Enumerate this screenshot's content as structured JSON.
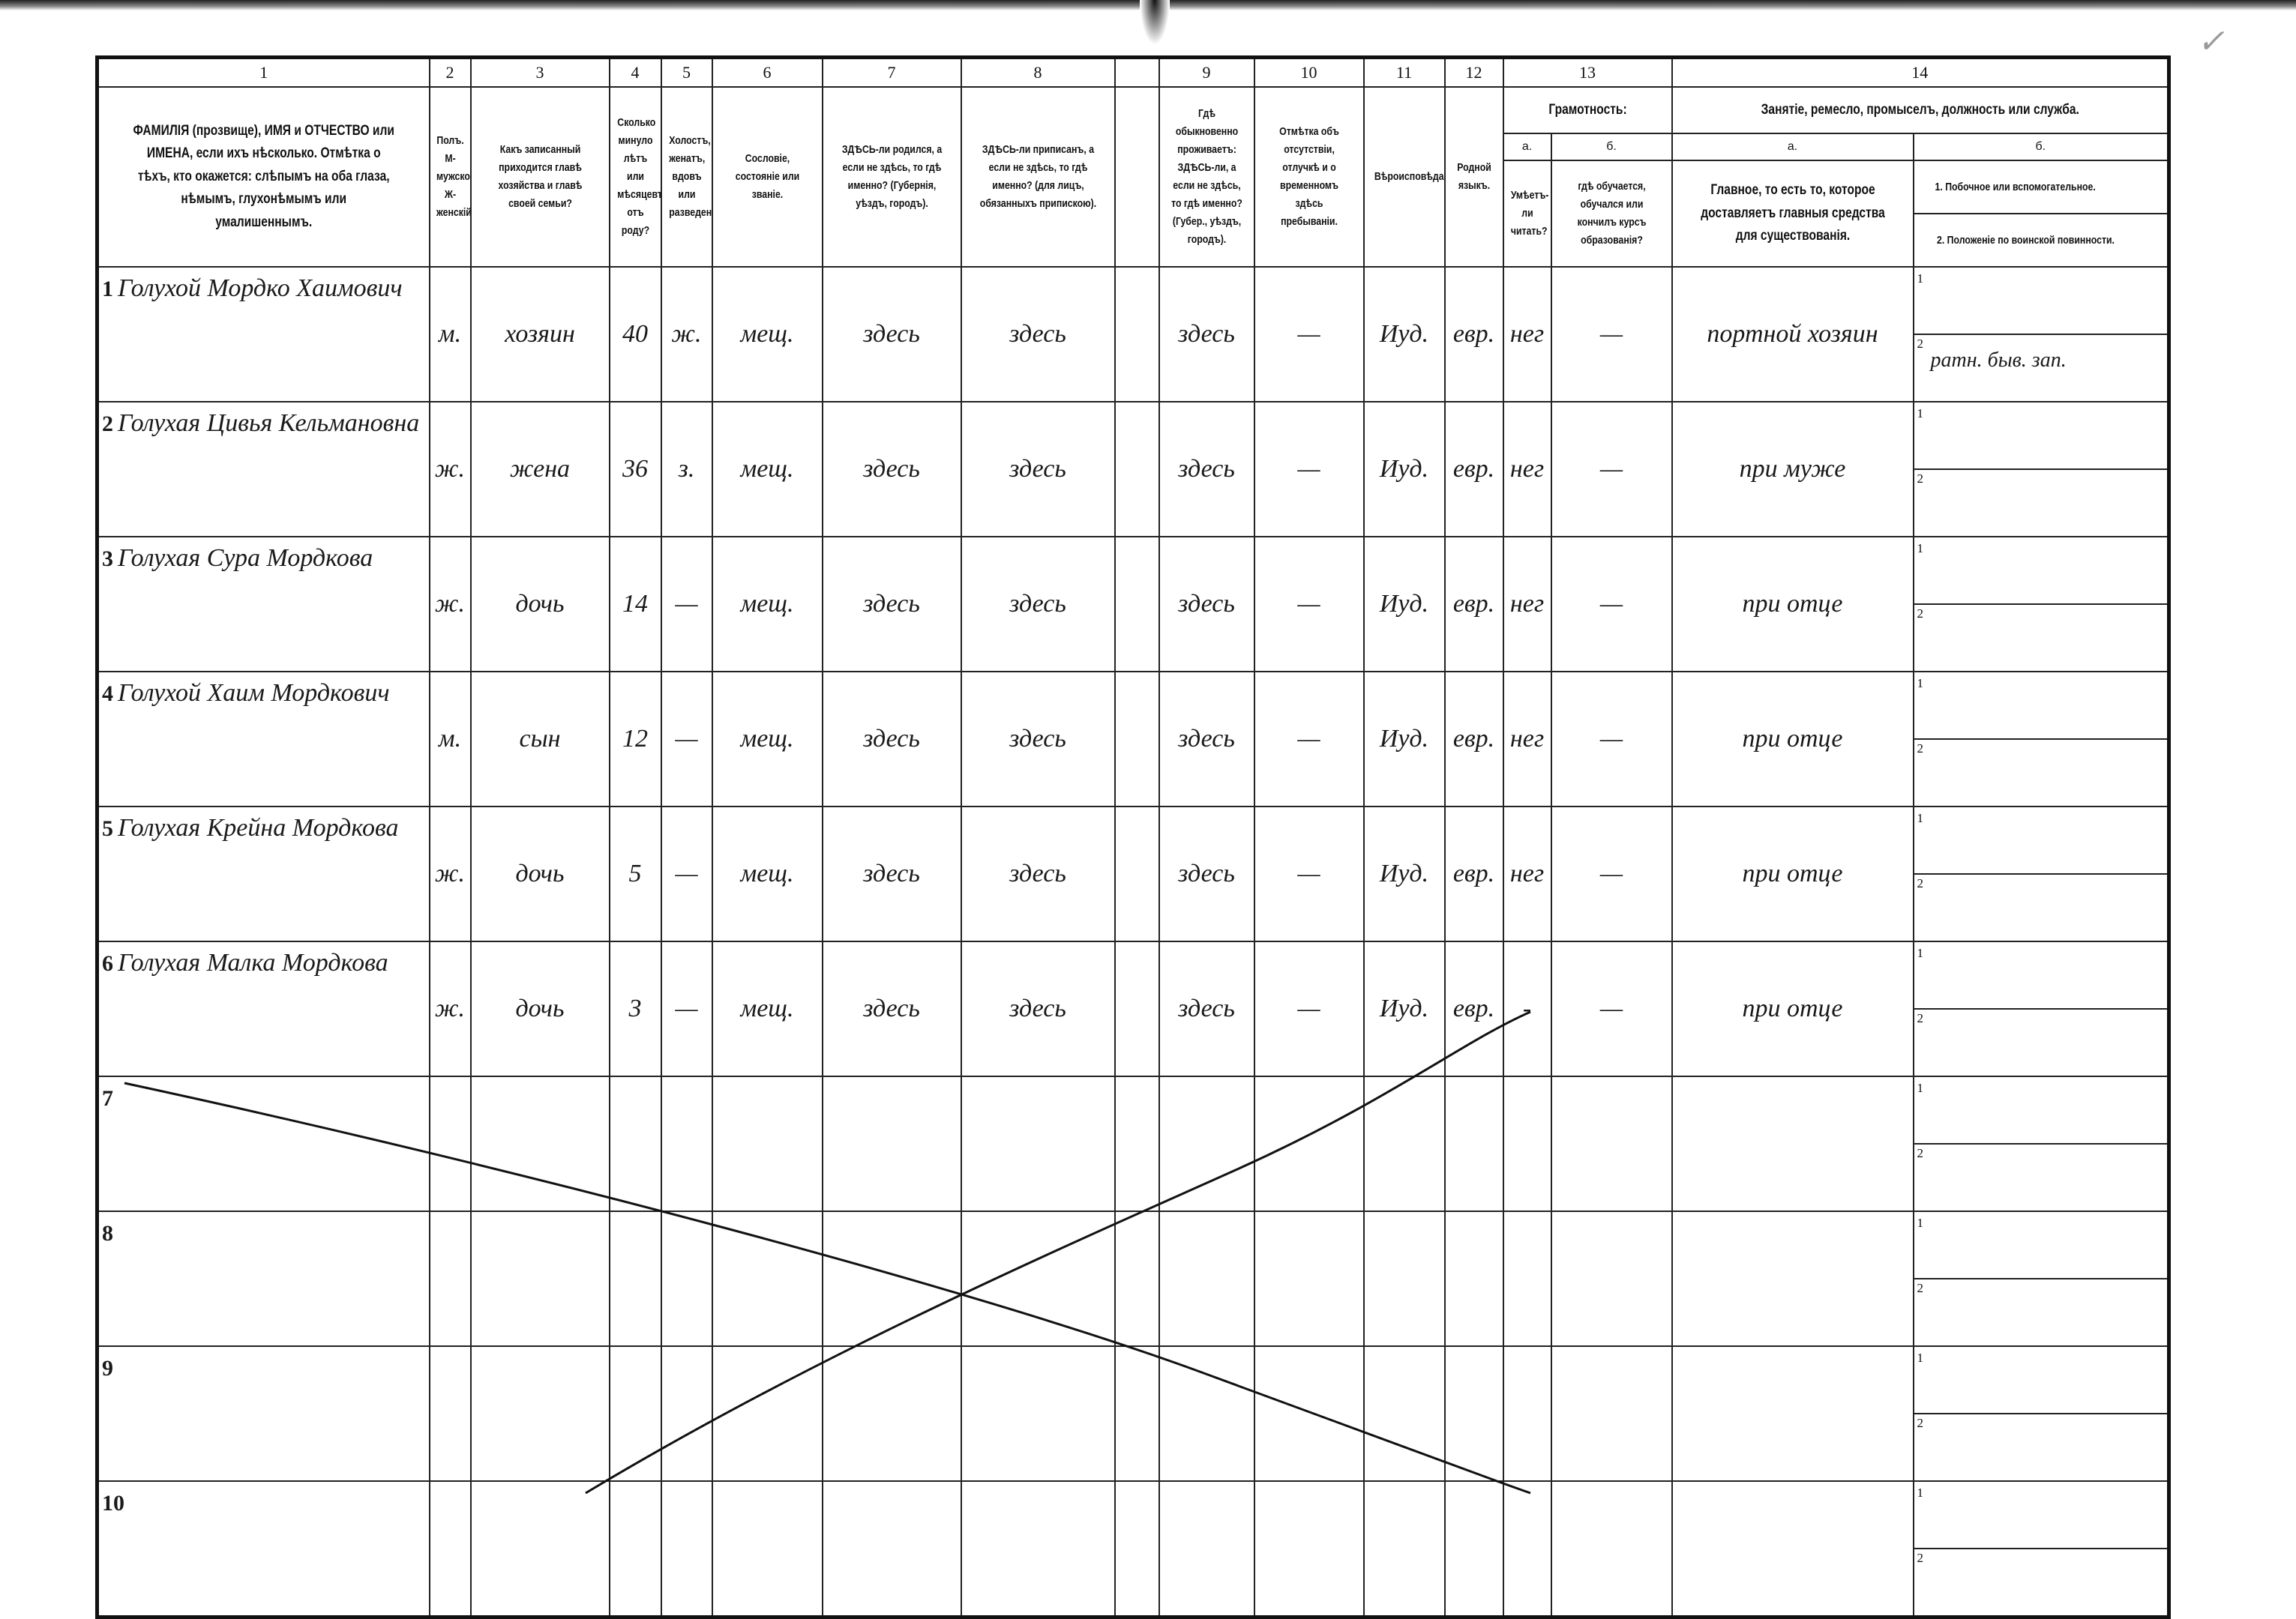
{
  "column_numbers": [
    "1",
    "2",
    "3",
    "4",
    "5",
    "6",
    "7",
    "8",
    "",
    "9",
    "10",
    "11",
    "12",
    "13",
    "14"
  ],
  "headers": {
    "c1": "ФАМИЛІЯ (прозвище), ИМЯ и ОТЧЕСТВО или ИМЕНА, если ихъ нѣсколько. Отмѣтка о тѣхъ, кто окажется: слѣпымъ на оба глаза, нѣмымъ, глухонѣмымъ или умалишеннымъ.",
    "c2": "Полъ. М-мужской. Ж-женскій.",
    "c3": "Какъ записанный приходится главѣ хозяйства и главѣ своей семьи?",
    "c4": "Сколько минуло лѣтъ или мѣсяцевъ отъ роду?",
    "c5": "Холостъ, женатъ, вдовъ или разведенъ.",
    "c6": "Сословіе, состояніе или званіе.",
    "c7": "ЗДѢСЬ-ли родился, а если не здѣсь, то гдѣ именно? (Губернія, уѣздъ, городъ).",
    "c8": "ЗДѢСЬ-ли приписанъ, а если не здѣсь, то гдѣ именно? (для лицъ, обязанныхъ припискою).",
    "c9": "Гдѣ обыкновенно проживаетъ: ЗДѢСЬ-ли, а если не здѣсь, то гдѣ именно? (Губер., уѣздъ, городъ).",
    "c10": "Отмѣтка объ отсутствіи, отлучкѣ и о временномъ здѣсь пребываніи.",
    "c11": "Вѣроисповѣданіе.",
    "c12": "Родной языкъ.",
    "c13": "Грамотность:",
    "c13a_label": "а.",
    "c13b_label": "б.",
    "c13a": "Умѣетъ-ли читать?",
    "c13b": "гдѣ обучается, обучался или кончилъ курсъ образованія?",
    "c14": "Занятіе, ремесло, промыселъ, должность или служба.",
    "c14a_label": "а.",
    "c14b_label": "б.",
    "c14a": "Главное, то есть то, которое доставляетъ главныя средства для существованія.",
    "c14b1": "1. Побочное или вспомогательное.",
    "c14b2": "2. Положеніе по воинской повинности."
  },
  "rows": [
    {
      "n": "1",
      "name": "Голухой Мордко Хаимович",
      "sex": "м.",
      "relation": "хозяин",
      "age": "40",
      "marital": "ж.",
      "estate": "мещ.",
      "born": "здесь",
      "registered": "здесь",
      "residence": "здесь",
      "absence": "—",
      "religion": "Иуд.",
      "language": "евр.",
      "literate": "нег",
      "schooling": "—",
      "occupation": "портной хозяин",
      "side_1": "",
      "side_2": "ратн. быв. зап."
    },
    {
      "n": "2",
      "name": "Голухая Цивья Кельмановна",
      "sex": "ж.",
      "relation": "жена",
      "age": "36",
      "marital": "з.",
      "estate": "мещ.",
      "born": "здесь",
      "registered": "здесь",
      "residence": "здесь",
      "absence": "—",
      "religion": "Иуд.",
      "language": "евр.",
      "literate": "нег",
      "schooling": "—",
      "occupation": "при муже",
      "side_1": "",
      "side_2": ""
    },
    {
      "n": "3",
      "name": "Голухая Сура Мордкова",
      "sex": "ж.",
      "relation": "дочь",
      "age": "14",
      "marital": "—",
      "estate": "мещ.",
      "born": "здесь",
      "registered": "здесь",
      "residence": "здесь",
      "absence": "—",
      "religion": "Иуд.",
      "language": "евр.",
      "literate": "нег",
      "schooling": "—",
      "occupation": "при отце",
      "side_1": "",
      "side_2": ""
    },
    {
      "n": "4",
      "name": "Голухой Хаим Мордкович",
      "sex": "м.",
      "relation": "сын",
      "age": "12",
      "marital": "—",
      "estate": "мещ.",
      "born": "здесь",
      "registered": "здесь",
      "residence": "здесь",
      "absence": "—",
      "religion": "Иуд.",
      "language": "евр.",
      "literate": "нег",
      "schooling": "—",
      "occupation": "при отце",
      "side_1": "",
      "side_2": ""
    },
    {
      "n": "5",
      "name": "Голухая Крейна Мордкова",
      "sex": "ж.",
      "relation": "дочь",
      "age": "5",
      "marital": "—",
      "estate": "мещ.",
      "born": "здесь",
      "registered": "здесь",
      "residence": "здесь",
      "absence": "—",
      "religion": "Иуд.",
      "language": "евр.",
      "literate": "нег",
      "schooling": "—",
      "occupation": "при отце",
      "side_1": "",
      "side_2": ""
    },
    {
      "n": "6",
      "name": "Голухая Малка Мордкова",
      "sex": "ж.",
      "relation": "дочь",
      "age": "3",
      "marital": "—",
      "estate": "мещ.",
      "born": "здесь",
      "registered": "здесь",
      "residence": "здесь",
      "absence": "—",
      "religion": "Иуд.",
      "language": "евр.",
      "literate": "-",
      "schooling": "—",
      "occupation": "при отце",
      "side_1": "",
      "side_2": ""
    },
    {
      "n": "7"
    },
    {
      "n": "8"
    },
    {
      "n": "9"
    },
    {
      "n": "10"
    }
  ],
  "sub_labels": [
    "1",
    "2"
  ]
}
